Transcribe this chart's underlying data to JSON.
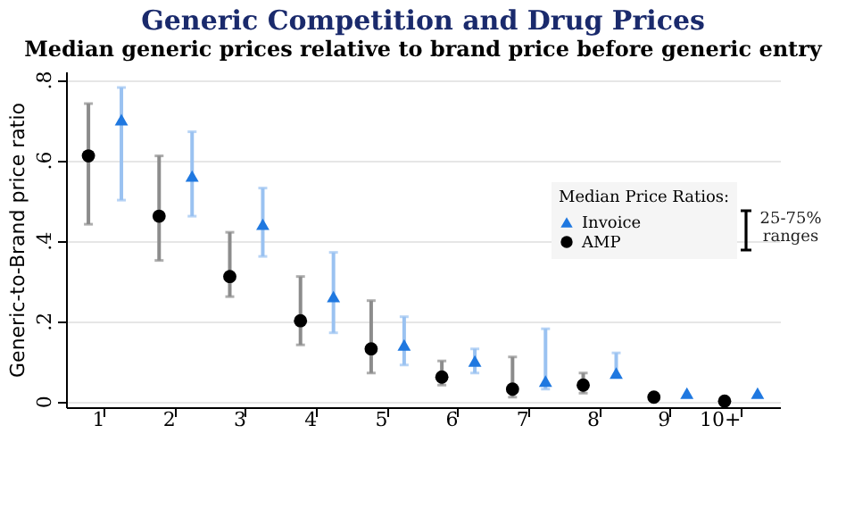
{
  "chart_data": {
    "type": "scatter",
    "title": "Generic Competition and Drug Prices",
    "subtitle": "Median generic prices relative to brand price before generic entry",
    "ylabel": "Generic-to-Brand price ratio",
    "categories": [
      "1",
      "2",
      "3",
      "4",
      "5",
      "6",
      "7",
      "8",
      "9",
      "10+"
    ],
    "series": [
      {
        "name": "Invoice",
        "color": "#1f78e0",
        "marker": "triangle",
        "values": [
          0.7,
          0.56,
          0.44,
          0.26,
          0.14,
          0.1,
          0.05,
          0.07,
          0.02,
          0.02
        ],
        "errors": [
          [
            0.5,
            0.78
          ],
          [
            0.46,
            0.67
          ],
          [
            0.36,
            0.53
          ],
          [
            0.17,
            0.37
          ],
          [
            0.09,
            0.21
          ],
          [
            0.07,
            0.13
          ],
          [
            0.03,
            0.18
          ],
          [
            0.06,
            0.12
          ],
          null,
          null
        ]
      },
      {
        "name": "AMP",
        "color": "#000000",
        "marker": "circle",
        "values": [
          0.61,
          0.46,
          0.31,
          0.2,
          0.13,
          0.06,
          0.03,
          0.04,
          0.01,
          0.0
        ],
        "errors": [
          [
            0.44,
            0.74
          ],
          [
            0.35,
            0.61
          ],
          [
            0.26,
            0.42
          ],
          [
            0.14,
            0.31
          ],
          [
            0.07,
            0.25
          ],
          [
            0.04,
            0.1
          ],
          [
            0.01,
            0.11
          ],
          [
            0.02,
            0.07
          ],
          null,
          null
        ]
      }
    ],
    "ylim": [
      -0.015,
      0.82
    ],
    "yticks": [
      {
        "value": 0,
        "label": "0"
      },
      {
        "value": 0.2,
        "label": ".2"
      },
      {
        "value": 0.4,
        "label": ".4"
      },
      {
        "value": 0.6,
        "label": ".6"
      },
      {
        "value": 0.8,
        "label": ".8"
      }
    ],
    "grid": "y",
    "legend": "right",
    "legend_title": "Median Price Ratios:",
    "annotations": [
      "25-75% ranges"
    ]
  }
}
